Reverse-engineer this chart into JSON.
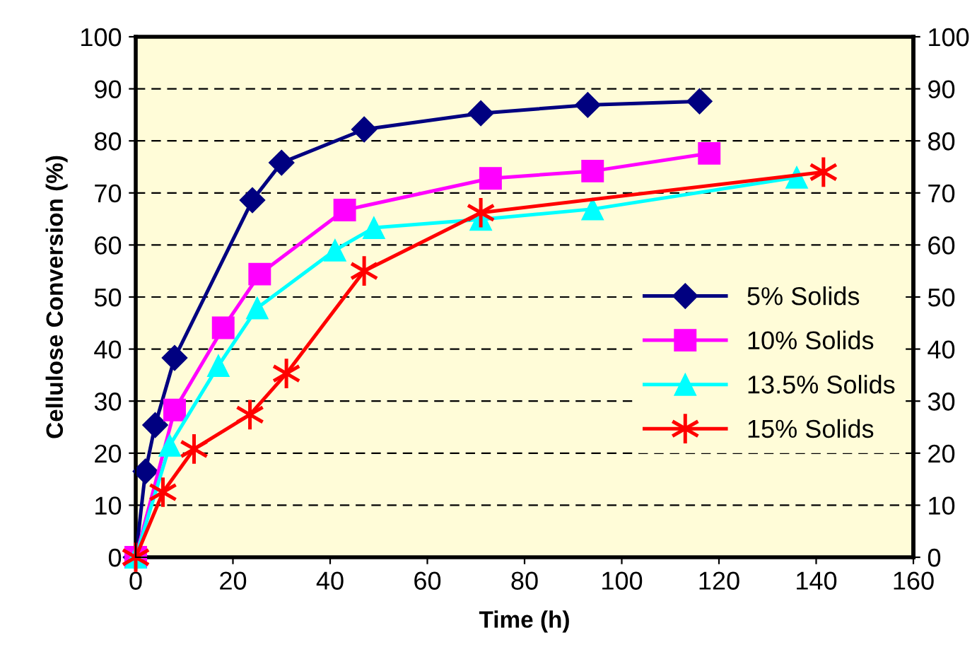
{
  "chart_data": {
    "type": "line",
    "xlabel": "Time (h)",
    "ylabel": "Cellulose Conversion (%)",
    "xlim": [
      0,
      160
    ],
    "xticks": [
      0,
      20,
      40,
      60,
      80,
      100,
      120,
      140,
      160
    ],
    "ylim": [
      0,
      100
    ],
    "yticks": [
      0,
      10,
      20,
      30,
      40,
      50,
      60,
      70,
      80,
      90,
      100
    ],
    "y2lim": [
      0,
      100
    ],
    "y2ticks": [
      0,
      10,
      20,
      30,
      40,
      50,
      60,
      70,
      80,
      90,
      100
    ],
    "grid": "y",
    "legend": "right",
    "line_style": "solid",
    "series": [
      {
        "name": "5% Solids",
        "color": "#000080",
        "marker": "diamond",
        "x": [
          0,
          2,
          4,
          8,
          24,
          30,
          47,
          71,
          93,
          116
        ],
        "values": [
          0,
          16.5,
          25.4,
          38.3,
          68.6,
          75.8,
          82.2,
          85.3,
          86.9,
          87.6
        ]
      },
      {
        "name": "10% Solids",
        "color": "#ff00ff",
        "marker": "square",
        "x": [
          0,
          8,
          18,
          25.5,
          43,
          73,
          94,
          118
        ],
        "values": [
          0,
          28.3,
          44.1,
          54.4,
          66.7,
          72.8,
          74.2,
          77.6
        ]
      },
      {
        "name": "13.5% Solids",
        "color": "#00ffff",
        "marker": "triangle",
        "x": [
          0,
          7,
          17,
          25,
          41,
          49,
          71,
          94,
          136
        ],
        "values": [
          0,
          21.5,
          36.8,
          47.9,
          59,
          63.3,
          64.9,
          66.9,
          73
        ]
      },
      {
        "name": "15% Solids",
        "color": "#ff0000",
        "marker": "cross",
        "x": [
          0,
          5.6,
          12,
          23.5,
          31,
          47,
          71,
          141.5
        ],
        "values": [
          0,
          12.5,
          20.8,
          27.4,
          35.3,
          55,
          66.2,
          74
        ]
      }
    ]
  }
}
